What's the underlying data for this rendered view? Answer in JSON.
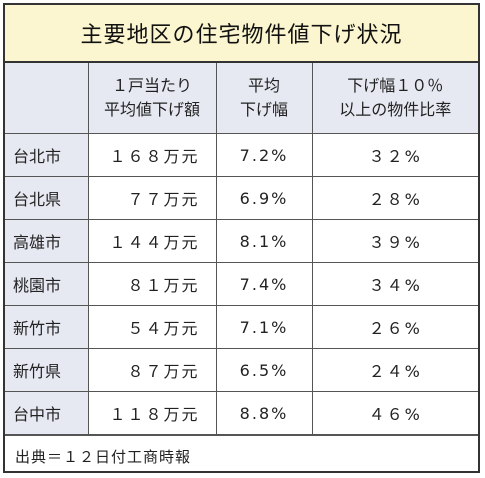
{
  "title": "主要地区の住宅物件値下げ状況",
  "headers": {
    "corner": "",
    "amount": [
      "１戸当たり",
      "平均値下げ額"
    ],
    "avg": [
      "平均",
      "下げ幅"
    ],
    "ratio": [
      "下げ幅１０％",
      "以上の物件比率"
    ]
  },
  "rows": [
    {
      "city": "台北市",
      "amount": "１６８万元",
      "avg": "7.2%",
      "ratio": "３２%"
    },
    {
      "city": "台北県",
      "amount": "７７万元",
      "avg": "6.9%",
      "ratio": "２８%"
    },
    {
      "city": "高雄市",
      "amount": "１４４万元",
      "avg": "8.1%",
      "ratio": "３９%"
    },
    {
      "city": "桃園市",
      "amount": "８１万元",
      "avg": "7.4%",
      "ratio": "３４%"
    },
    {
      "city": "新竹市",
      "amount": "５４万元",
      "avg": "7.1%",
      "ratio": "２６%"
    },
    {
      "city": "新竹県",
      "amount": "８７万元",
      "avg": "6.5%",
      "ratio": "２４%"
    },
    {
      "city": "台中市",
      "amount": "１１８万元",
      "avg": "8.8%",
      "ratio": "４６%"
    }
  ],
  "source": "出典＝１２日付工商時報",
  "colors": {
    "title_bg": "#fbf6cf",
    "header_bg": "#e7e9f2",
    "border": "#333333"
  }
}
